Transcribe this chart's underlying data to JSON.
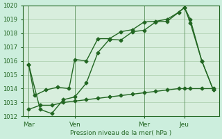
{
  "background_color": "#cceedd",
  "plot_bg_color": "#ddeeff",
  "grid_color": "#aaccaa",
  "line_color": "#226622",
  "line_color2": "#226622",
  "line_color3": "#226622",
  "ylabel": "Pression niveau de la mer( hPa )",
  "ylim": [
    1012,
    1020
  ],
  "yticks": [
    1012,
    1013,
    1014,
    1015,
    1016,
    1017,
    1018,
    1019,
    1020
  ],
  "xtick_labels": [
    "Mar",
    "Ven",
    "Mer",
    "Jeu"
  ],
  "xtick_positions": [
    0,
    8,
    20,
    27
  ],
  "xmin": -1,
  "xmax": 33,
  "vlines": [
    0,
    8,
    20,
    27
  ],
  "line1_x": [
    0,
    1,
    3,
    5,
    7,
    8,
    10,
    12,
    14,
    16,
    18,
    20,
    22,
    24,
    26,
    27,
    28,
    30,
    32
  ],
  "line1_y": [
    1015.75,
    1013.5,
    1013.9,
    1014.1,
    1014.0,
    1016.1,
    1016.0,
    1017.6,
    1017.6,
    1018.1,
    1018.25,
    1018.8,
    1018.85,
    1019.0,
    1019.5,
    1019.85,
    1018.75,
    1016.0,
    1013.9
  ],
  "line2_x": [
    0,
    2,
    4,
    6,
    8,
    10,
    12,
    14,
    16,
    18,
    20,
    22,
    24,
    26,
    27,
    28,
    30,
    32
  ],
  "line2_y": [
    1015.75,
    1012.5,
    1012.2,
    1013.2,
    1013.4,
    1014.4,
    1016.6,
    1017.55,
    1017.5,
    1018.1,
    1018.2,
    1018.8,
    1018.85,
    1019.5,
    1019.85,
    1019.0,
    1016.0,
    1013.9
  ],
  "line3_x": [
    0,
    2,
    4,
    6,
    8,
    10,
    12,
    14,
    16,
    18,
    20,
    22,
    24,
    26,
    27,
    28,
    30,
    32
  ],
  "line3_y": [
    1012.5,
    1012.8,
    1012.8,
    1013.0,
    1013.1,
    1013.2,
    1013.3,
    1013.4,
    1013.5,
    1013.6,
    1013.7,
    1013.8,
    1013.9,
    1014.0,
    1014.0,
    1014.0,
    1014.0,
    1014.0
  ]
}
